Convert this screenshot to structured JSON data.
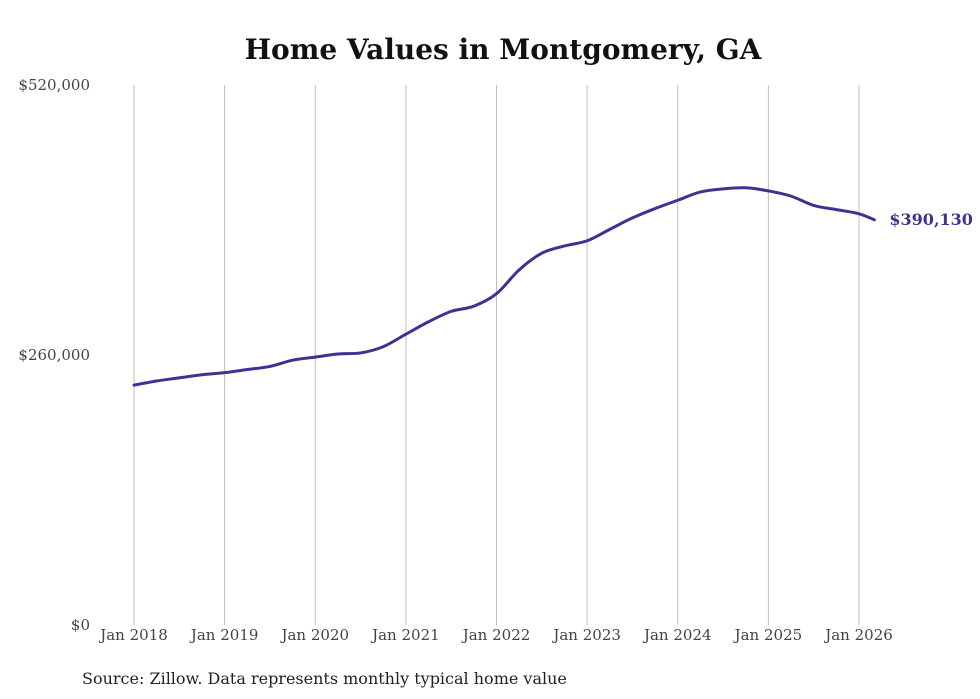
{
  "colors": {
    "series": "#3d3392",
    "grid": "#bfbfbf",
    "text": "#444444"
  },
  "source_note": "Source: Zillow. Data represents monthly typical home value",
  "chart_data": {
    "type": "line",
    "title": "Home Values in Montgomery, GA",
    "xlabel": "",
    "ylabel": "",
    "ylim": [
      0,
      520000
    ],
    "yticks": [
      {
        "value": 0,
        "label": "$0"
      },
      {
        "value": 260000,
        "label": "$260,000"
      },
      {
        "value": 520000,
        "label": "$520,000"
      }
    ],
    "xticks": [
      {
        "value": 2018,
        "label": "Jan 2018"
      },
      {
        "value": 2019,
        "label": "Jan 2019"
      },
      {
        "value": 2020,
        "label": "Jan 2020"
      },
      {
        "value": 2021,
        "label": "Jan 2021"
      },
      {
        "value": 2022,
        "label": "Jan 2022"
      },
      {
        "value": 2023,
        "label": "Jan 2023"
      },
      {
        "value": 2024,
        "label": "Jan 2024"
      },
      {
        "value": 2025,
        "label": "Jan 2025"
      },
      {
        "value": 2026,
        "label": "Jan 2026"
      }
    ],
    "grid": "vertical",
    "end_label": "$390,130",
    "series": [
      {
        "x": [
          "Jan 2018",
          "Apr 2018",
          "Jul 2018",
          "Oct 2018",
          "Jan 2019",
          "Apr 2019",
          "Jul 2019",
          "Oct 2019",
          "Jan 2020",
          "Apr 2020",
          "Jul 2020",
          "Oct 2020",
          "Jan 2021",
          "Apr 2021",
          "Jul 2021",
          "Oct 2021",
          "Jan 2022",
          "Apr 2022",
          "Jul 2022",
          "Oct 2022",
          "Jan 2023",
          "Apr 2023",
          "Jul 2023",
          "Oct 2023",
          "Jan 2024",
          "Apr 2024",
          "Jul 2024",
          "Oct 2024",
          "Jan 2025",
          "Apr 2025",
          "Jul 2025",
          "Oct 2025",
          "Jan 2026",
          "Mar 2026"
        ],
        "xnum": [
          2018.0,
          2018.25,
          2018.5,
          2018.75,
          2019.0,
          2019.25,
          2019.5,
          2019.75,
          2020.0,
          2020.25,
          2020.5,
          2020.75,
          2021.0,
          2021.25,
          2021.5,
          2021.75,
          2022.0,
          2022.25,
          2022.5,
          2022.75,
          2023.0,
          2023.25,
          2023.5,
          2023.75,
          2024.0,
          2024.25,
          2024.5,
          2024.75,
          2025.0,
          2025.25,
          2025.5,
          2025.75,
          2026.0,
          2026.17
        ],
        "values": [
          231000,
          235000,
          238000,
          241000,
          243000,
          246000,
          249000,
          255000,
          258000,
          261000,
          262000,
          268000,
          280000,
          292000,
          302000,
          307000,
          319000,
          342000,
          358000,
          365000,
          370000,
          381000,
          392000,
          401000,
          409000,
          417000,
          420000,
          421000,
          418000,
          413000,
          404000,
          400000,
          396000,
          390130
        ]
      }
    ]
  }
}
